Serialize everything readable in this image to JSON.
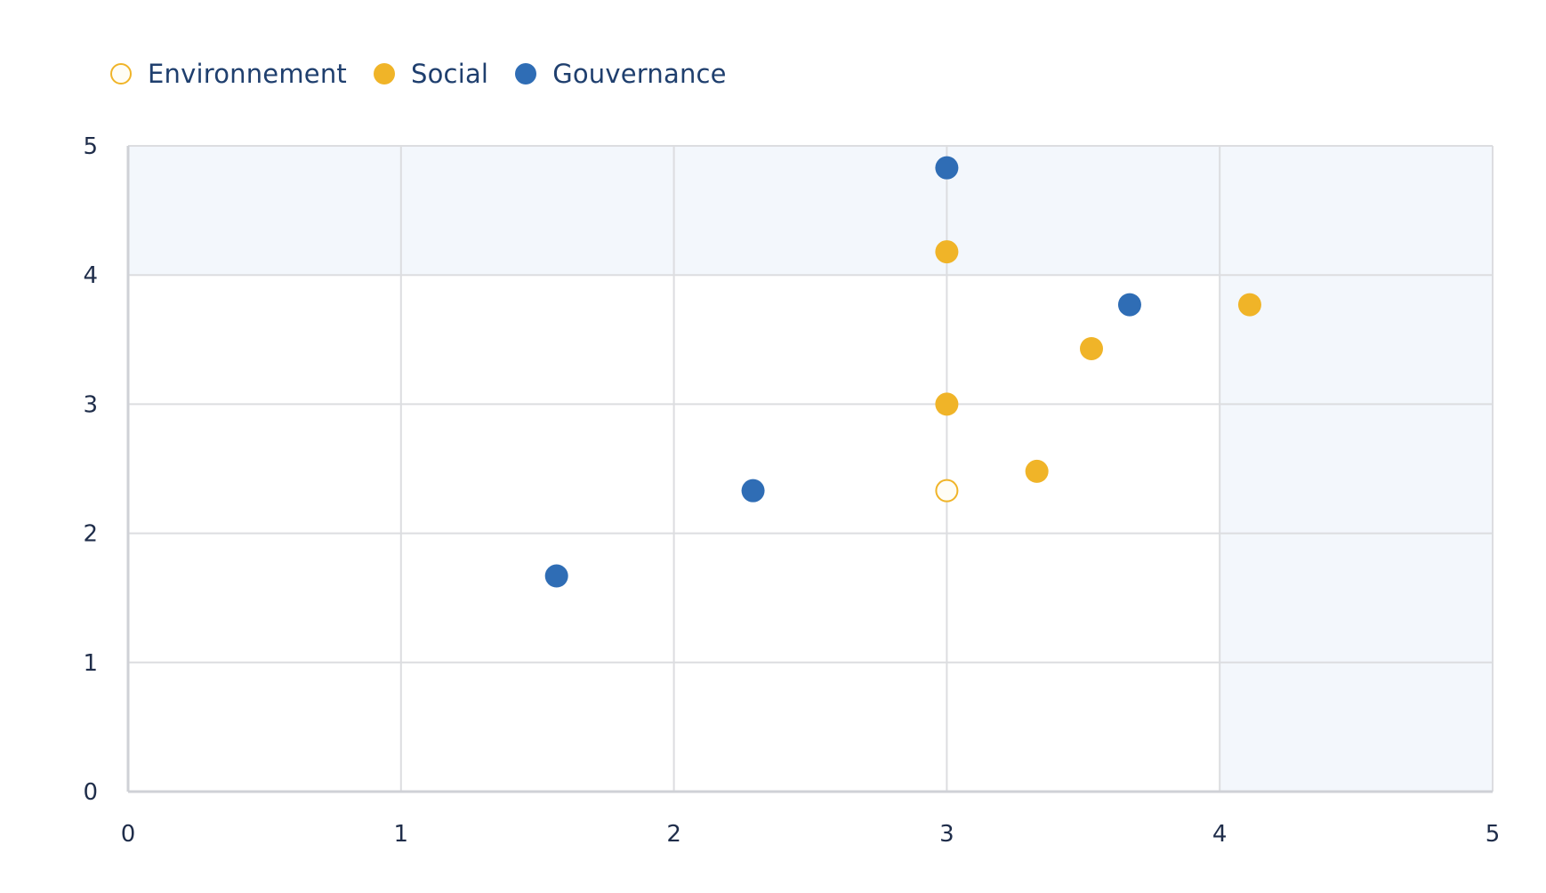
{
  "chart_data": {
    "type": "scatter",
    "title": "",
    "xlabel": "",
    "ylabel": "",
    "xlim": [
      0,
      5
    ],
    "ylim": [
      0,
      5
    ],
    "xticks": [
      "0",
      "1",
      "2",
      "3",
      "4",
      "5"
    ],
    "yticks": [
      "0",
      "1",
      "2",
      "3",
      "4",
      "5"
    ],
    "grid": true,
    "legend_position": "top-left",
    "highlight_regions": [
      {
        "x": [
          0,
          5
        ],
        "y": [
          4,
          5
        ]
      },
      {
        "x": [
          4,
          5
        ],
        "y": [
          0,
          4
        ]
      }
    ],
    "series": [
      {
        "name": "Environnement",
        "style": "hollow",
        "color": "#f0b428",
        "points": [
          {
            "x": 3.0,
            "y": 2.33
          }
        ]
      },
      {
        "name": "Social",
        "style": "filled",
        "color": "#f0b428",
        "points": [
          {
            "x": 3.0,
            "y": 4.18
          },
          {
            "x": 4.11,
            "y": 3.77
          },
          {
            "x": 3.53,
            "y": 3.43
          },
          {
            "x": 3.0,
            "y": 3.0
          },
          {
            "x": 3.33,
            "y": 2.48
          }
        ]
      },
      {
        "name": "Gouvernance",
        "style": "filled",
        "color": "#2f6db5",
        "points": [
          {
            "x": 3.0,
            "y": 4.83
          },
          {
            "x": 3.67,
            "y": 3.77
          },
          {
            "x": 2.29,
            "y": 2.33
          },
          {
            "x": 1.57,
            "y": 1.67
          }
        ]
      }
    ]
  }
}
